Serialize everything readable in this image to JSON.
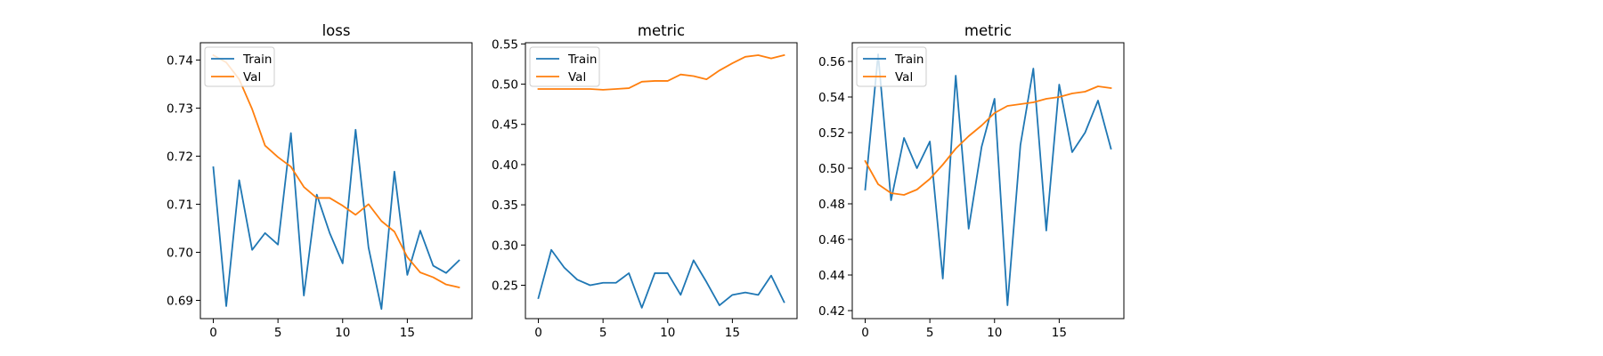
{
  "chart_data": [
    {
      "type": "line",
      "title": "loss",
      "xlabel": "",
      "ylabel": "",
      "xlim": [
        -1,
        20
      ],
      "ylim": [
        0.6862,
        0.7436
      ],
      "xticks": [
        0,
        5,
        10,
        15
      ],
      "yticks": [
        0.69,
        0.7,
        0.71,
        0.72,
        0.73,
        0.74
      ],
      "yticks_fmt": 2,
      "legend": "upper-left",
      "grid": false,
      "x": [
        0,
        1,
        2,
        3,
        4,
        5,
        6,
        7,
        8,
        9,
        10,
        11,
        12,
        13,
        14,
        15,
        16,
        17,
        18,
        19
      ],
      "series": [
        {
          "name": "Train",
          "color": "#1f77b4",
          "values": [
            0.7177,
            0.6888,
            0.715,
            0.7005,
            0.704,
            0.7016,
            0.7248,
            0.691,
            0.712,
            0.704,
            0.6977,
            0.7255,
            0.701,
            0.6882,
            0.7168,
            0.6953,
            0.7045,
            0.6972,
            0.6957,
            0.6983
          ]
        },
        {
          "name": "Val",
          "color": "#ff7f0e",
          "values": [
            0.741,
            0.7395,
            0.736,
            0.7298,
            0.7222,
            0.7198,
            0.7178,
            0.7136,
            0.7113,
            0.7113,
            0.7097,
            0.7078,
            0.71,
            0.7065,
            0.7043,
            0.699,
            0.6958,
            0.6948,
            0.6933,
            0.6927
          ]
        }
      ]
    },
    {
      "type": "line",
      "title": "metric",
      "xlabel": "",
      "ylabel": "",
      "xlim": [
        -1,
        20
      ],
      "ylim": [
        0.2085,
        0.5515
      ],
      "xticks": [
        0,
        5,
        10,
        15
      ],
      "yticks": [
        0.25,
        0.3,
        0.35,
        0.4,
        0.45,
        0.5,
        0.55
      ],
      "yticks_fmt": 2,
      "legend": "upper-left",
      "grid": false,
      "x": [
        0,
        1,
        2,
        3,
        4,
        5,
        6,
        7,
        8,
        9,
        10,
        11,
        12,
        13,
        14,
        15,
        16,
        17,
        18,
        19
      ],
      "series": [
        {
          "name": "Train",
          "color": "#1f77b4",
          "values": [
            0.234,
            0.294,
            0.272,
            0.257,
            0.25,
            0.253,
            0.253,
            0.265,
            0.222,
            0.265,
            0.265,
            0.238,
            0.281,
            0.254,
            0.225,
            0.238,
            0.241,
            0.238,
            0.262,
            0.229
          ]
        },
        {
          "name": "Val",
          "color": "#ff7f0e",
          "values": [
            0.494,
            0.494,
            0.494,
            0.494,
            0.494,
            0.493,
            0.494,
            0.495,
            0.503,
            0.504,
            0.504,
            0.512,
            0.51,
            0.506,
            0.517,
            0.526,
            0.534,
            0.536,
            0.532,
            0.536
          ]
        }
      ]
    },
    {
      "type": "line",
      "title": "metric",
      "xlabel": "",
      "ylabel": "",
      "xlim": [
        -1,
        20
      ],
      "ylim": [
        0.4155,
        0.5705
      ],
      "xticks": [
        0,
        5,
        10,
        15
      ],
      "yticks": [
        0.42,
        0.44,
        0.46,
        0.48,
        0.5,
        0.52,
        0.54,
        0.56
      ],
      "yticks_fmt": 2,
      "legend": "upper-left",
      "grid": false,
      "x": [
        0,
        1,
        2,
        3,
        4,
        5,
        6,
        7,
        8,
        9,
        10,
        11,
        12,
        13,
        14,
        15,
        16,
        17,
        18,
        19
      ],
      "series": [
        {
          "name": "Train",
          "color": "#1f77b4",
          "values": [
            0.488,
            0.564,
            0.482,
            0.517,
            0.5,
            0.515,
            0.438,
            0.552,
            0.466,
            0.512,
            0.539,
            0.423,
            0.513,
            0.556,
            0.465,
            0.547,
            0.509,
            0.52,
            0.538,
            0.511
          ]
        },
        {
          "name": "Val",
          "color": "#ff7f0e",
          "values": [
            0.504,
            0.491,
            0.486,
            0.485,
            0.488,
            0.494,
            0.502,
            0.511,
            0.518,
            0.524,
            0.531,
            0.535,
            0.536,
            0.537,
            0.539,
            0.54,
            0.542,
            0.543,
            0.546,
            0.545
          ]
        }
      ]
    }
  ]
}
